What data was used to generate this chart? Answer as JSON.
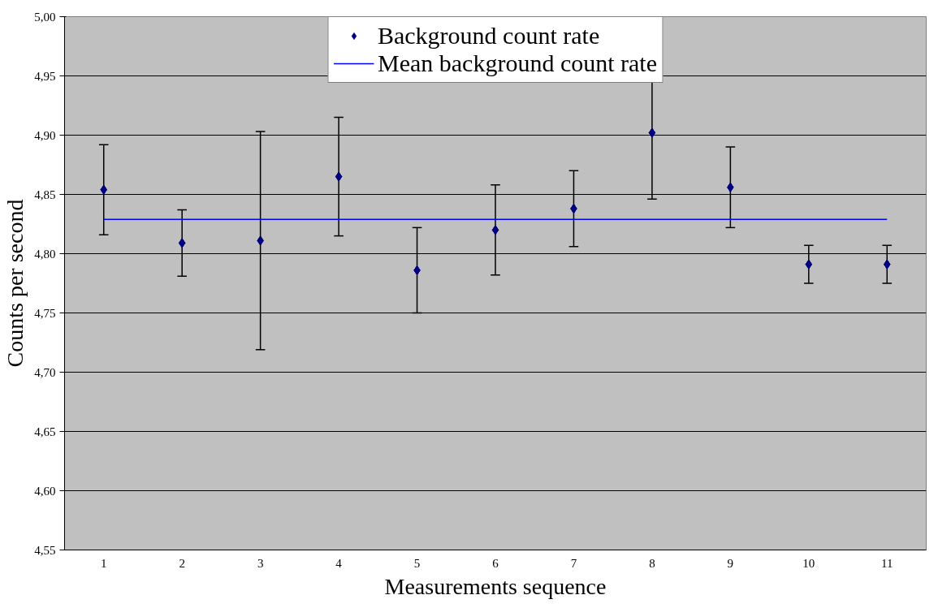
{
  "chart_data": {
    "type": "scatter",
    "xlabel": "Measurements sequence",
    "ylabel": "Counts per second",
    "categories": [
      "1",
      "2",
      "3",
      "4",
      "5",
      "6",
      "7",
      "8",
      "9",
      "10",
      "11"
    ],
    "series": [
      {
        "name": "Background count rate",
        "color": "#000080",
        "marker": "diamond",
        "values": [
          4.854,
          4.809,
          4.811,
          4.865,
          4.786,
          4.82,
          4.838,
          4.902,
          4.856,
          4.791,
          4.791
        ],
        "errors": [
          [
            4.816,
            4.892
          ],
          [
            4.781,
            4.837
          ],
          [
            4.719,
            4.903
          ],
          [
            4.815,
            4.915
          ],
          [
            4.75,
            4.822
          ],
          [
            4.782,
            4.858
          ],
          [
            4.806,
            4.87
          ],
          [
            4.846,
            4.958
          ],
          [
            4.822,
            4.89
          ],
          [
            4.775,
            4.807
          ],
          [
            4.775,
            4.807
          ]
        ]
      },
      {
        "name": "Mean background count rate",
        "type": "line",
        "color": "#0000ff",
        "values": [
          4.829,
          4.829,
          4.829,
          4.829,
          4.829,
          4.829,
          4.829,
          4.829,
          4.829,
          4.829,
          4.829
        ]
      }
    ],
    "ylim": [
      4.55,
      5.0
    ],
    "yticks": [
      {
        "value": 4.55,
        "label": "4,55"
      },
      {
        "value": 4.6,
        "label": "4,60"
      },
      {
        "value": 4.65,
        "label": "4,65"
      },
      {
        "value": 4.7,
        "label": "4,70"
      },
      {
        "value": 4.75,
        "label": "4,75"
      },
      {
        "value": 4.8,
        "label": "4,80"
      },
      {
        "value": 4.85,
        "label": "4,85"
      },
      {
        "value": 4.9,
        "label": "4,90"
      },
      {
        "value": 4.95,
        "label": "4,95"
      },
      {
        "value": 5.0,
        "label": "5,00"
      }
    ],
    "grid": "y",
    "legend": "top"
  }
}
